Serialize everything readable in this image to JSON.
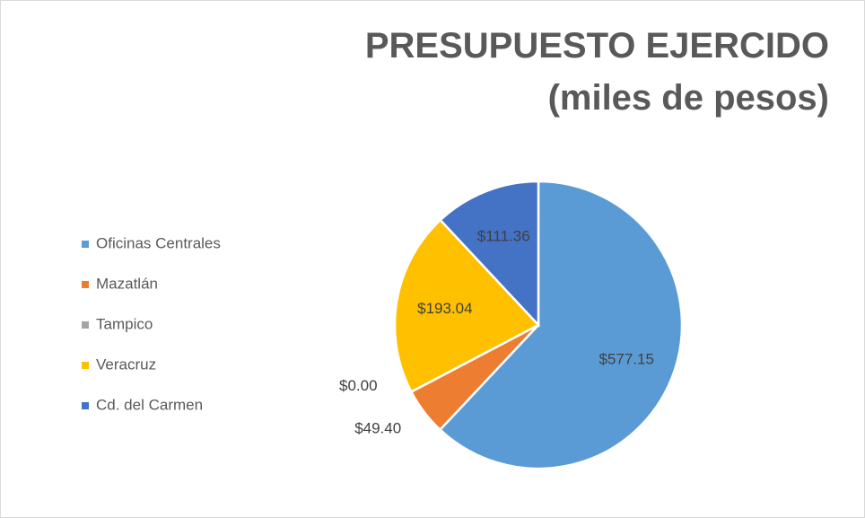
{
  "chart_data": {
    "type": "pie",
    "title": "PRESUPUESTO EJERCIDO (miles de pesos)",
    "categories": [
      "Oficinas Centrales",
      "Mazatlán",
      "Tampico",
      "Veracruz",
      "Cd. del Carmen"
    ],
    "values": [
      577.15,
      49.4,
      0.0,
      193.04,
      111.36
    ],
    "value_labels": [
      "$577.15",
      "$49.40",
      "$0.00",
      "$193.04",
      "$111.36"
    ],
    "colors": [
      "#5b9bd5",
      "#ed7d31",
      "#a5a5a5",
      "#ffc000",
      "#4472c4"
    ],
    "legend": "left"
  }
}
